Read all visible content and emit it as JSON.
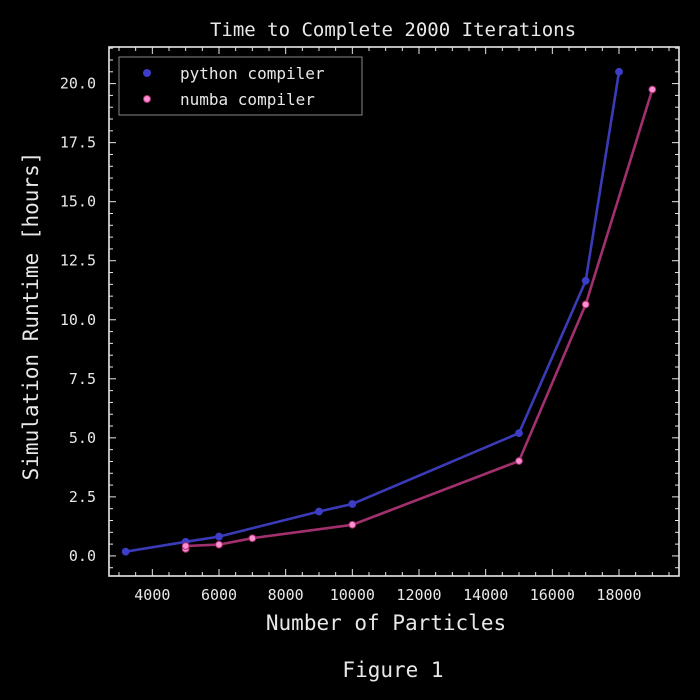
{
  "chart_data": {
    "type": "line",
    "title": "Time to Complete 2000 Iterations",
    "xlabel": "Number of Particles",
    "ylabel": "Simulation Runtime [hours]",
    "caption": "Figure 1",
    "xlim": [
      2700,
      19800
    ],
    "ylim": [
      -0.85,
      21.55
    ],
    "xticks": [
      4000,
      6000,
      8000,
      10000,
      12000,
      14000,
      16000,
      18000
    ],
    "xtick_labels": [
      "4000",
      "6000",
      "8000",
      "10000",
      "12000",
      "14000",
      "16000",
      "18000"
    ],
    "x_minor_step": 500,
    "yticks": [
      0.0,
      2.5,
      5.0,
      7.5,
      10.0,
      12.5,
      15.0,
      17.5,
      20.0
    ],
    "ytick_labels": [
      "0.0",
      "2.5",
      "5.0",
      "7.5",
      "10.0",
      "12.5",
      "15.0",
      "17.5",
      "20.0"
    ],
    "y_minor_step": 0.5,
    "grid": false,
    "legend_position": "top-left",
    "series": [
      {
        "name": "python compiler",
        "line_color": "#3b3bb8",
        "marker_color": "#3d3dc8",
        "marker_edge": "#3d3dc8",
        "x": [
          3200,
          5000,
          6000,
          9000,
          10000,
          15000,
          17000,
          18000
        ],
        "y": [
          0.18,
          0.6,
          0.82,
          1.88,
          2.2,
          5.2,
          11.65,
          20.5
        ]
      },
      {
        "name": "numba compiler",
        "line_color": "#a3306e",
        "marker_color": "#ff8fd0",
        "marker_edge": "#a3306e",
        "x": [
          5000,
          5000,
          6000,
          7000,
          10000,
          15000,
          17000,
          19000
        ],
        "y": [
          0.3,
          0.42,
          0.48,
          0.75,
          1.32,
          4.02,
          10.65,
          19.75
        ]
      }
    ],
    "colors": {
      "background": "#000000",
      "axes": "#e8e8e8",
      "text": "#e8e8e8",
      "legend_border": "#888888"
    }
  }
}
